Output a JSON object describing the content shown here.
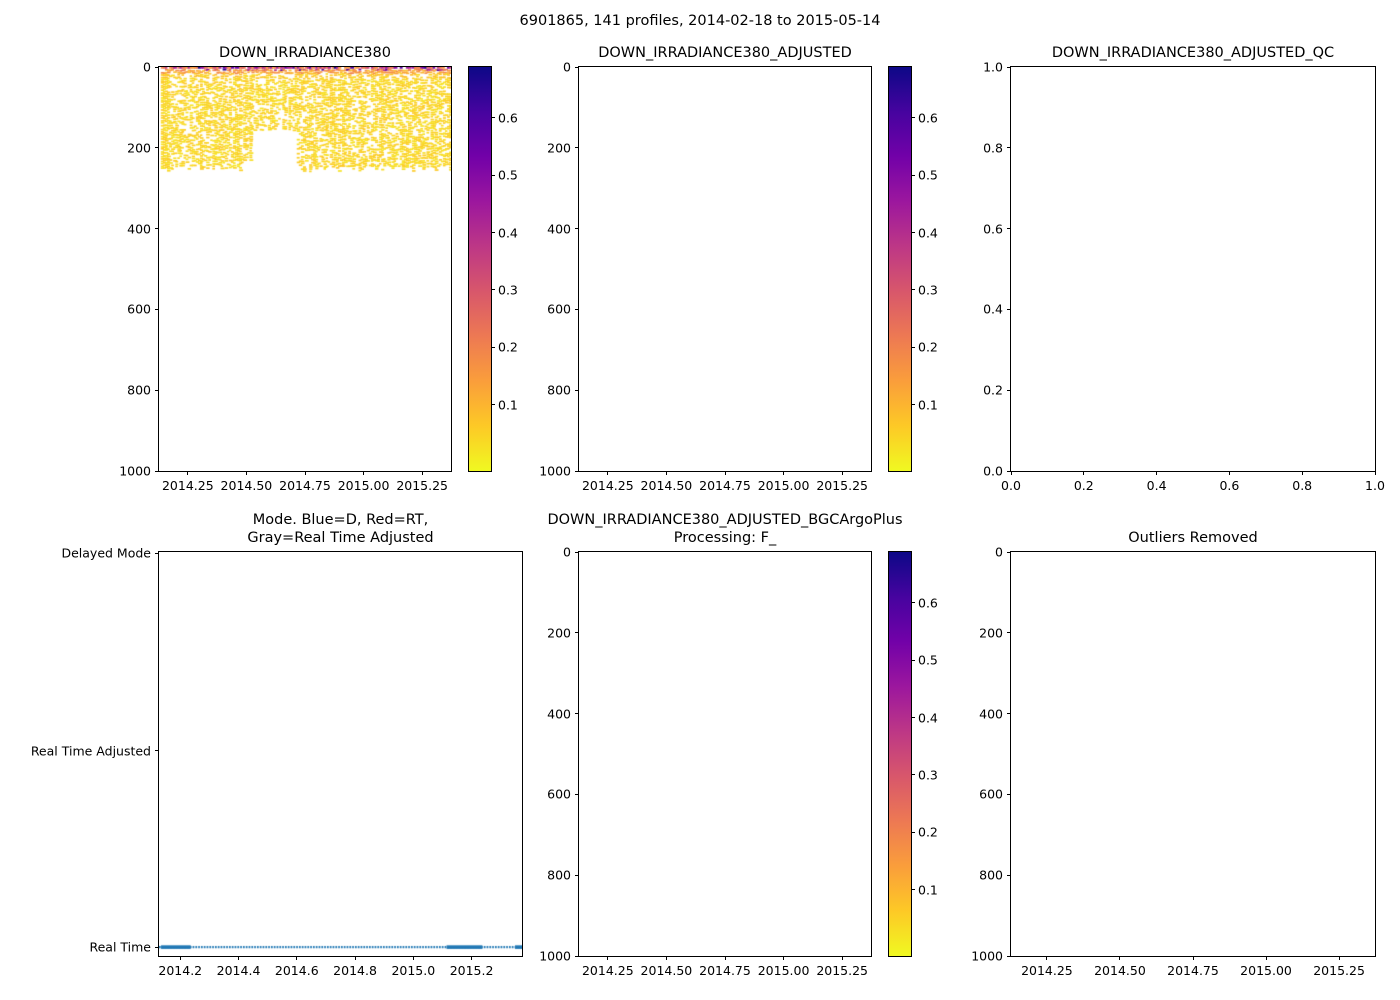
{
  "figure": {
    "suptitle": "6901865, 141 profiles, 2014-02-18 to 2015-05-14",
    "float_id": "6901865",
    "n_profiles": 141,
    "date_range": "2014-02-18 to 2015-05-14",
    "background": "#ffffff",
    "colors": {
      "axis": "#000000",
      "line_blue": "#1f77b4",
      "plasma_r_top_to_bottom": [
        "#0d0887",
        "#46039f",
        "#7201a8",
        "#9c179e",
        "#bd3786",
        "#d8576b",
        "#ed7953",
        "#fa9e3b",
        "#fdc926",
        "#f0f921"
      ]
    }
  },
  "chart_data": [
    {
      "type": "scatter",
      "title": "DOWN_IRRADIANCE380",
      "xlim": [
        2014.127,
        2015.373
      ],
      "ylim_top_to_bottom": [
        0,
        1000
      ],
      "y_axis_meaning": "depth/pressure, inverted",
      "xticks": [
        {
          "v": 2014.25,
          "f": 0.0987,
          "label": "2014.25"
        },
        {
          "v": 2014.5,
          "f": 0.2993,
          "label": "2014.50"
        },
        {
          "v": 2014.75,
          "f": 0.5,
          "label": "2014.75"
        },
        {
          "v": 2015.0,
          "f": 0.7006,
          "label": "2015.00"
        },
        {
          "v": 2015.25,
          "f": 0.9013,
          "label": "2015.25"
        }
      ],
      "yticks": [
        {
          "v": 0,
          "f": 0.0,
          "label": "0"
        },
        {
          "v": 200,
          "f": 0.2,
          "label": "200"
        },
        {
          "v": 400,
          "f": 0.4,
          "label": "400"
        },
        {
          "v": 600,
          "f": 0.6,
          "label": "600"
        },
        {
          "v": 800,
          "f": 0.8,
          "label": "800"
        },
        {
          "v": 1000,
          "f": 1.0,
          "label": "1000"
        }
      ],
      "colorbar": {
        "vmin": -0.016,
        "vmax": 0.689,
        "ticks": [
          {
            "v": 0.1,
            "f": 0.8355,
            "label": "0.1"
          },
          {
            "v": 0.2,
            "f": 0.6936,
            "label": "0.2"
          },
          {
            "v": 0.3,
            "f": 0.5518,
            "label": "0.3"
          },
          {
            "v": 0.4,
            "f": 0.4099,
            "label": "0.4"
          },
          {
            "v": 0.5,
            "f": 0.2681,
            "label": "0.5"
          },
          {
            "v": 0.6,
            "f": 0.1262,
            "label": "0.6"
          }
        ]
      },
      "data_summary": {
        "n_profiles": 141,
        "time_extent": [
          2014.14,
          2015.37
        ],
        "depth_extent": [
          0,
          255
        ],
        "surface_band_values_0_10m": [
          0.1,
          0.7
        ],
        "subsurface_values_below_25m": [
          0.02,
          0.08
        ],
        "data_gap": {
          "time": [
            2014.525,
            2014.715
          ],
          "depth_below": 155
        },
        "no_data_below_depth": 255
      }
    },
    {
      "type": "scatter",
      "title": "DOWN_IRRADIANCE380_ADJUSTED",
      "xlim": [
        2014.127,
        2015.373
      ],
      "ylim_top_to_bottom": [
        0,
        1000
      ],
      "xticks": [
        {
          "v": 2014.25,
          "f": 0.0987,
          "label": "2014.25"
        },
        {
          "v": 2014.5,
          "f": 0.2993,
          "label": "2014.50"
        },
        {
          "v": 2014.75,
          "f": 0.5,
          "label": "2014.75"
        },
        {
          "v": 2015.0,
          "f": 0.7006,
          "label": "2015.00"
        },
        {
          "v": 2015.25,
          "f": 0.9013,
          "label": "2015.25"
        }
      ],
      "yticks": [
        {
          "v": 0,
          "f": 0.0,
          "label": "0"
        },
        {
          "v": 200,
          "f": 0.2,
          "label": "200"
        },
        {
          "v": 400,
          "f": 0.4,
          "label": "400"
        },
        {
          "v": 600,
          "f": 0.6,
          "label": "600"
        },
        {
          "v": 800,
          "f": 0.8,
          "label": "800"
        },
        {
          "v": 1000,
          "f": 1.0,
          "label": "1000"
        }
      ],
      "colorbar": {
        "vmin": -0.016,
        "vmax": 0.689,
        "ticks": [
          {
            "v": 0.1,
            "f": 0.8355,
            "label": "0.1"
          },
          {
            "v": 0.2,
            "f": 0.6936,
            "label": "0.2"
          },
          {
            "v": 0.3,
            "f": 0.5518,
            "label": "0.3"
          },
          {
            "v": 0.4,
            "f": 0.4099,
            "label": "0.4"
          },
          {
            "v": 0.5,
            "f": 0.2681,
            "label": "0.5"
          },
          {
            "v": 0.6,
            "f": 0.1262,
            "label": "0.6"
          }
        ]
      },
      "data_summary": {
        "n_points": 0,
        "note": "empty axes - no adjusted data"
      }
    },
    {
      "type": "scatter",
      "title": "DOWN_IRRADIANCE380_ADJUSTED_QC",
      "xlim": [
        0.0,
        1.0
      ],
      "ylim_top_to_bottom": [
        1.0,
        0.0
      ],
      "xticks": [
        {
          "v": 0.0,
          "f": 0.0,
          "label": "0.0"
        },
        {
          "v": 0.2,
          "f": 0.2,
          "label": "0.2"
        },
        {
          "v": 0.4,
          "f": 0.4,
          "label": "0.4"
        },
        {
          "v": 0.6,
          "f": 0.6,
          "label": "0.6"
        },
        {
          "v": 0.8,
          "f": 0.8,
          "label": "0.8"
        },
        {
          "v": 1.0,
          "f": 1.0,
          "label": "1.0"
        }
      ],
      "yticks": [
        {
          "v": 1.0,
          "f": 0.0,
          "label": "1.0"
        },
        {
          "v": 0.8,
          "f": 0.2,
          "label": "0.8"
        },
        {
          "v": 0.6,
          "f": 0.4,
          "label": "0.6"
        },
        {
          "v": 0.4,
          "f": 0.6,
          "label": "0.4"
        },
        {
          "v": 0.2,
          "f": 0.8,
          "label": "0.2"
        },
        {
          "v": 0.0,
          "f": 1.0,
          "label": "0.0"
        }
      ],
      "data_summary": {
        "n_points": 0,
        "note": "empty axes - no QC data"
      }
    },
    {
      "type": "line",
      "title": "Mode. Blue=D, Red=RT,\nGray=Real Time Adjusted",
      "xlim": [
        2014.127,
        2015.373
      ],
      "xticks": [
        {
          "v": 2014.2,
          "f": 0.0586,
          "label": "2014.2"
        },
        {
          "v": 2014.4,
          "f": 0.2191,
          "label": "2014.4"
        },
        {
          "v": 2014.6,
          "f": 0.3796,
          "label": "2014.6"
        },
        {
          "v": 2014.8,
          "f": 0.5401,
          "label": "2014.8"
        },
        {
          "v": 2015.0,
          "f": 0.7006,
          "label": "2015.0"
        },
        {
          "v": 2015.2,
          "f": 0.8611,
          "label": "2015.2"
        }
      ],
      "yticks": [
        {
          "v": "Delayed Mode",
          "f": 0.003,
          "label": "Delayed Mode"
        },
        {
          "v": "Real Time Adjusted",
          "f": 0.492,
          "label": "Real Time Adjusted"
        },
        {
          "v": "Real Time",
          "f": 0.978,
          "label": "Real Time"
        }
      ],
      "categories": [
        "Delayed Mode",
        "Real Time Adjusted",
        "Real Time"
      ],
      "series": [
        {
          "name": "profile mode",
          "constant_value": "Real Time",
          "n_points": 141,
          "color": "#1f77b4",
          "style": "dotted with solid overlap segments",
          "dotted_range": [
            2014.127,
            2015.373
          ],
          "solid_segments": [
            [
              2014.134,
              2014.236
            ],
            [
              2015.114,
              2015.237
            ],
            [
              2015.349,
              2015.373
            ]
          ]
        }
      ]
    },
    {
      "type": "scatter",
      "title": "DOWN_IRRADIANCE380_ADJUSTED_BGCArgoPlus\nProcessing: F_",
      "xlim": [
        2014.127,
        2015.373
      ],
      "ylim_top_to_bottom": [
        0,
        1000
      ],
      "xticks": [
        {
          "v": 2014.25,
          "f": 0.0987,
          "label": "2014.25"
        },
        {
          "v": 2014.5,
          "f": 0.2993,
          "label": "2014.50"
        },
        {
          "v": 2014.75,
          "f": 0.5,
          "label": "2014.75"
        },
        {
          "v": 2015.0,
          "f": 0.7006,
          "label": "2015.00"
        },
        {
          "v": 2015.25,
          "f": 0.9013,
          "label": "2015.25"
        }
      ],
      "yticks": [
        {
          "v": 0,
          "f": 0.0,
          "label": "0"
        },
        {
          "v": 200,
          "f": 0.2,
          "label": "200"
        },
        {
          "v": 400,
          "f": 0.4,
          "label": "400"
        },
        {
          "v": 600,
          "f": 0.6,
          "label": "600"
        },
        {
          "v": 800,
          "f": 0.8,
          "label": "800"
        },
        {
          "v": 1000,
          "f": 1.0,
          "label": "1000"
        }
      ],
      "colorbar": {
        "vmin": -0.016,
        "vmax": 0.689,
        "ticks": [
          {
            "v": 0.1,
            "f": 0.8355,
            "label": "0.1"
          },
          {
            "v": 0.2,
            "f": 0.6936,
            "label": "0.2"
          },
          {
            "v": 0.3,
            "f": 0.5518,
            "label": "0.3"
          },
          {
            "v": 0.4,
            "f": 0.4099,
            "label": "0.4"
          },
          {
            "v": 0.5,
            "f": 0.2681,
            "label": "0.5"
          },
          {
            "v": 0.6,
            "f": 0.1262,
            "label": "0.6"
          }
        ]
      },
      "data_summary": {
        "n_points": 0,
        "note": "empty axes - no BGCArgoPlus processed data"
      }
    },
    {
      "type": "scatter",
      "title": "Outliers Removed",
      "xlim": [
        2014.127,
        2015.373
      ],
      "ylim_top_to_bottom": [
        0,
        1000
      ],
      "xticks": [
        {
          "v": 2014.25,
          "f": 0.0987,
          "label": "2014.25"
        },
        {
          "v": 2014.5,
          "f": 0.2993,
          "label": "2014.50"
        },
        {
          "v": 2014.75,
          "f": 0.5,
          "label": "2014.75"
        },
        {
          "v": 2015.0,
          "f": 0.7006,
          "label": "2015.00"
        },
        {
          "v": 2015.25,
          "f": 0.9013,
          "label": "2015.25"
        }
      ],
      "yticks": [
        {
          "v": 0,
          "f": 0.0,
          "label": "0"
        },
        {
          "v": 200,
          "f": 0.2,
          "label": "200"
        },
        {
          "v": 400,
          "f": 0.4,
          "label": "400"
        },
        {
          "v": 600,
          "f": 0.6,
          "label": "600"
        },
        {
          "v": 800,
          "f": 0.8,
          "label": "800"
        },
        {
          "v": 1000,
          "f": 1.0,
          "label": "1000"
        }
      ],
      "data_summary": {
        "n_points": 0,
        "note": "empty axes - no outliers-removed data"
      }
    }
  ]
}
